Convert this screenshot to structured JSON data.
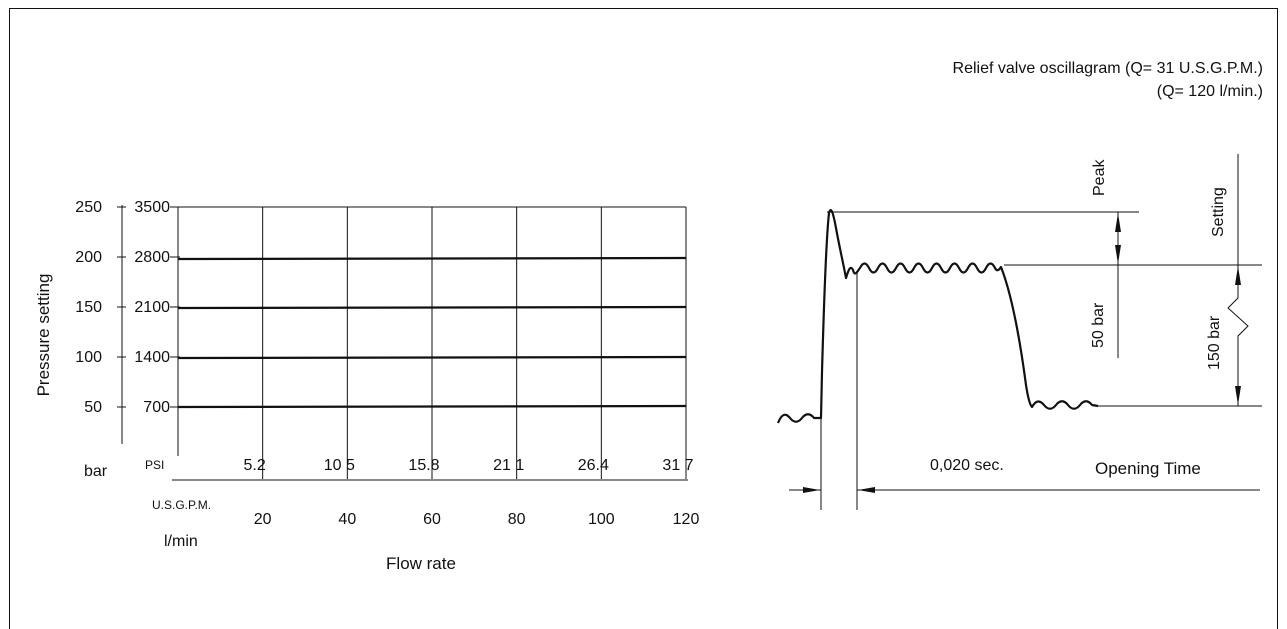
{
  "chart_data": [
    {
      "type": "line",
      "xlabel": "Flow rate",
      "ylabel": "Pressure setting",
      "y_primary_unit": "bar",
      "y_secondary_unit": "PSI",
      "x_primary_unit": "U.S.G.P.M.",
      "x_secondary_unit": "l/min",
      "y_ticks_bar": [
        "50",
        "100",
        "150",
        "200",
        "250"
      ],
      "y_ticks_psi": [
        "700",
        "1400",
        "2100",
        "2800",
        "3500"
      ],
      "x_ticks_usgpm": [
        "5.2",
        "10 5",
        "15.8",
        "21 1",
        "26.4",
        "31 7"
      ],
      "x_ticks_lmin": [
        "20",
        "40",
        "60",
        "80",
        "100",
        "120"
      ],
      "xlim": [
        0,
        120
      ],
      "ylim": [
        0,
        250
      ],
      "grid": true,
      "series": [
        {
          "values": [
            [
              0,
              50
            ],
            [
              120,
              51
            ]
          ]
        },
        {
          "values": [
            [
              0,
              99
            ],
            [
              120,
              100
            ]
          ]
        },
        {
          "values": [
            [
              0,
              149
            ],
            [
              120,
              150
            ]
          ]
        },
        {
          "values": [
            [
              0,
              198
            ],
            [
              120,
              199
            ]
          ]
        }
      ]
    },
    {
      "type": "line",
      "title_line1": "Relief valve oscillagram (Q= 31 U.S.G.P.M.)",
      "title_line2": "(Q= 120 l/min.)",
      "labels": {
        "peak": "Peak",
        "setting": "Setting",
        "peak_delta": "50 bar",
        "setting_value": "150 bar",
        "time_value": "0,020 sec.",
        "opening_time": "Opening Time"
      }
    }
  ]
}
